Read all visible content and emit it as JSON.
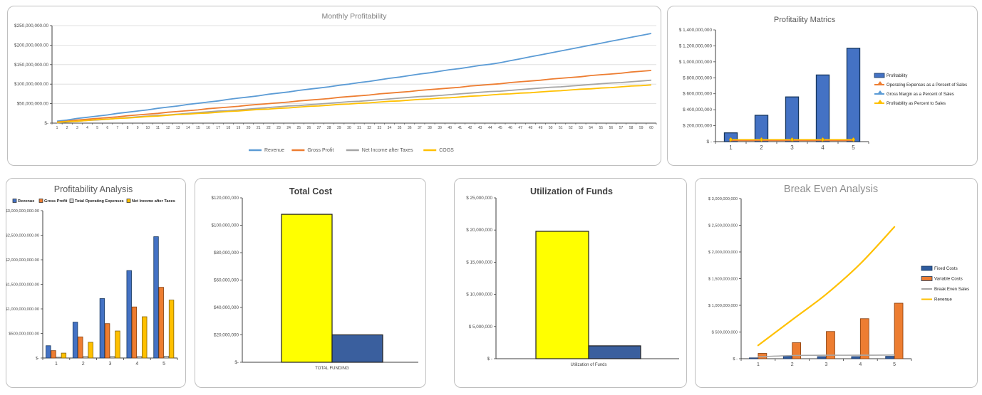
{
  "page": {
    "background": "#FFFFFF",
    "panel_border": "#BFBFBF"
  },
  "chart_data": [
    {
      "type": "line",
      "title": "Monthly Profitability",
      "unit": "USD, millions",
      "ylim": [
        0,
        250
      ],
      "y_tick_labels": [
        "$250,000,000.00",
        "$200,000,000.00",
        "$150,000,000.00",
        "$100,000,000.00",
        "$50,000,000.00",
        "$-"
      ],
      "grid": true,
      "legend_position": "bottom",
      "x_labels": [
        1,
        2,
        3,
        4,
        5,
        6,
        7,
        8,
        9,
        10,
        11,
        12,
        13,
        14,
        15,
        16,
        17,
        18,
        19,
        20,
        21,
        22,
        23,
        24,
        25,
        26,
        27,
        28,
        29,
        30,
        31,
        32,
        33,
        34,
        35,
        36,
        37,
        38,
        39,
        40,
        41,
        42,
        43,
        44,
        45,
        46,
        47,
        48,
        49,
        50,
        51,
        52,
        53,
        54,
        55,
        56,
        57,
        58,
        59,
        60
      ],
      "series": [
        {
          "name": "Revenue",
          "kind": "line",
          "color": "#5B9BD5",
          "values": [
            5,
            8,
            12,
            15,
            18,
            21,
            25,
            28,
            31,
            34,
            38,
            41,
            44,
            48,
            51,
            54,
            57,
            61,
            64,
            67,
            70,
            74,
            77,
            80,
            84,
            87,
            90,
            93,
            97,
            100,
            104,
            107,
            111,
            115,
            118,
            122,
            126,
            129,
            133,
            137,
            140,
            144,
            148,
            151,
            155,
            160,
            165,
            170,
            175,
            180,
            185,
            190,
            195,
            200,
            205,
            210,
            215,
            220,
            225,
            230
          ]
        },
        {
          "name": "Gross Profit",
          "kind": "line",
          "color": "#ED7D31",
          "values": [
            3,
            5,
            8,
            10,
            12,
            14,
            16,
            19,
            21,
            23,
            25,
            28,
            30,
            32,
            34,
            37,
            39,
            41,
            43,
            46,
            48,
            50,
            52,
            54,
            57,
            59,
            61,
            63,
            66,
            68,
            70,
            72,
            75,
            77,
            79,
            81,
            84,
            86,
            88,
            90,
            92,
            95,
            97,
            99,
            101,
            104,
            106,
            108,
            110,
            113,
            115,
            117,
            119,
            122,
            124,
            126,
            128,
            131,
            133,
            135
          ]
        },
        {
          "name": "Net Income after Taxes",
          "kind": "line",
          "color": "#A5A5A5",
          "values": [
            1,
            3,
            5,
            7,
            8,
            10,
            12,
            14,
            16,
            18,
            20,
            21,
            23,
            25,
            27,
            29,
            31,
            32,
            34,
            36,
            38,
            40,
            42,
            44,
            45,
            47,
            49,
            51,
            53,
            55,
            56,
            58,
            60,
            62,
            64,
            66,
            68,
            69,
            71,
            73,
            75,
            77,
            79,
            81,
            82,
            84,
            86,
            88,
            90,
            92,
            93,
            95,
            97,
            99,
            101,
            103,
            104,
            106,
            108,
            110
          ]
        },
        {
          "name": "COGS",
          "kind": "line",
          "color": "#FFC000",
          "values": [
            2,
            4,
            5,
            7,
            9,
            10,
            12,
            13,
            15,
            17,
            18,
            20,
            22,
            23,
            25,
            26,
            28,
            30,
            31,
            33,
            35,
            36,
            38,
            39,
            41,
            43,
            44,
            46,
            48,
            49,
            51,
            52,
            54,
            56,
            57,
            59,
            61,
            62,
            64,
            65,
            67,
            69,
            70,
            72,
            74,
            75,
            77,
            78,
            80,
            82,
            83,
            85,
            87,
            88,
            90,
            91,
            93,
            95,
            96,
            98
          ]
        }
      ]
    },
    {
      "type": "bar+line",
      "title": "Profitaility Matrics",
      "unit": "USD, millions",
      "ylim": [
        0,
        1400
      ],
      "y_tick_labels": [
        "$ 1,400,000,000",
        "$ 1,200,000,000",
        "$ 1,000,000,000",
        "$ 800,000,000",
        "$ 600,000,000",
        "$ 400,000,000",
        "$ 200,000,000",
        "$ -"
      ],
      "grid": false,
      "legend_position": "right",
      "categories": [
        1,
        2,
        3,
        4,
        5
      ],
      "series": [
        {
          "name": "Profitability",
          "kind": "bar",
          "color": "#4472C4",
          "values": [
            110,
            330,
            560,
            835,
            1170
          ]
        },
        {
          "name": "Operating Expenses as a Percent of Sales",
          "kind": "line",
          "color": "#ED7D31",
          "values": [
            0,
            0,
            0,
            0,
            0
          ]
        },
        {
          "name": "Gross Margin as a Percent of Sales",
          "kind": "line",
          "color": "#5B9BD5",
          "values": [
            0,
            0,
            0,
            0,
            0
          ]
        },
        {
          "name": "Profitability as Percent to Sales",
          "kind": "line",
          "color": "#FFC000",
          "values": [
            0,
            0,
            0,
            0,
            0
          ]
        }
      ]
    },
    {
      "type": "bar",
      "title": "Profitability Analysis",
      "unit": "USD, millions",
      "ylim": [
        0,
        3000
      ],
      "y_tick_labels": [
        "$3,000,000,000.00",
        "$2,500,000,000.00",
        "$2,000,000,000.00",
        "$1,500,000,000.00",
        "$1,000,000,000.00",
        "$500,000,000.00",
        "$-"
      ],
      "grid": false,
      "legend_position": "top",
      "categories": [
        1,
        2,
        3,
        4,
        5
      ],
      "series": [
        {
          "name": "Revenue",
          "kind": "bar",
          "color": "#4472C4",
          "values": [
            250,
            730,
            1210,
            1780,
            2470
          ]
        },
        {
          "name": "Gross Profit",
          "kind": "bar",
          "color": "#ED7D31",
          "values": [
            150,
            430,
            700,
            1040,
            1440
          ]
        },
        {
          "name": "Total Operating Expenses",
          "kind": "bar",
          "color": "#D9D9D9",
          "values": [
            15,
            30,
            30,
            30,
            35
          ]
        },
        {
          "name": "Net Income after Taxes",
          "kind": "bar",
          "color": "#FFC000",
          "values": [
            100,
            320,
            550,
            840,
            1180
          ]
        }
      ]
    },
    {
      "type": "bar",
      "title": "Total Cost",
      "unit": "USD, millions",
      "ylim": [
        0,
        120
      ],
      "y_tick_labels": [
        "$120,000,000",
        "$100,000,000",
        "$80,000,000",
        "$60,000,000",
        "$40,000,000",
        "$20,000,000",
        "$-"
      ],
      "grid": false,
      "legend_position": "none",
      "categories": [
        "TOTAL FUNDING"
      ],
      "series": [
        {
          "name": "",
          "kind": "bar",
          "color": "#FFFF00",
          "values": [
            108
          ]
        },
        {
          "name": "",
          "kind": "bar",
          "color": "#3A5F9E",
          "values": [
            20
          ]
        }
      ]
    },
    {
      "type": "bar",
      "title": "Utilization of Funds",
      "unit": "USD, millions",
      "ylim": [
        0,
        25
      ],
      "y_tick_labels": [
        "$ 25,000,000",
        "$ 20,000,000",
        "$ 15,000,000",
        "$ 10,000,000",
        "$ 5,000,000",
        "$ -"
      ],
      "grid": false,
      "legend_position": "none",
      "categories": [
        "Utilization of Funds"
      ],
      "series": [
        {
          "name": "",
          "kind": "bar",
          "color": "#FFFF00",
          "values": [
            19.8
          ]
        },
        {
          "name": "",
          "kind": "bar",
          "color": "#3A5F9E",
          "values": [
            2
          ]
        }
      ]
    },
    {
      "type": "bar+line",
      "title": "Break Even Analysis",
      "unit": "USD, millions",
      "ylim": [
        0,
        3000
      ],
      "y_tick_labels": [
        "$ 3,000,000,000",
        "$ 2,500,000,000",
        "$ 2,000,000,000",
        "$ 1,500,000,000",
        "$ 1,000,000,000",
        "$ 500,000,000",
        "$ -"
      ],
      "grid": false,
      "legend_position": "right",
      "categories": [
        1,
        2,
        3,
        4,
        5
      ],
      "series": [
        {
          "name": "Fixed Costs",
          "kind": "bar",
          "color": "#2E5B9E",
          "values": [
            15,
            50,
            40,
            40,
            45
          ]
        },
        {
          "name": "Variable Costs",
          "kind": "bar",
          "color": "#ED7D31",
          "values": [
            100,
            300,
            510,
            750,
            1040
          ]
        },
        {
          "name": "Break Even Sales",
          "kind": "line",
          "color": "#A6A6A6",
          "values": [
            35,
            60,
            65,
            65,
            70
          ]
        },
        {
          "name": "Revenue",
          "kind": "line",
          "color": "#FFC000",
          "values": [
            250,
            730,
            1210,
            1780,
            2470
          ]
        }
      ]
    }
  ]
}
